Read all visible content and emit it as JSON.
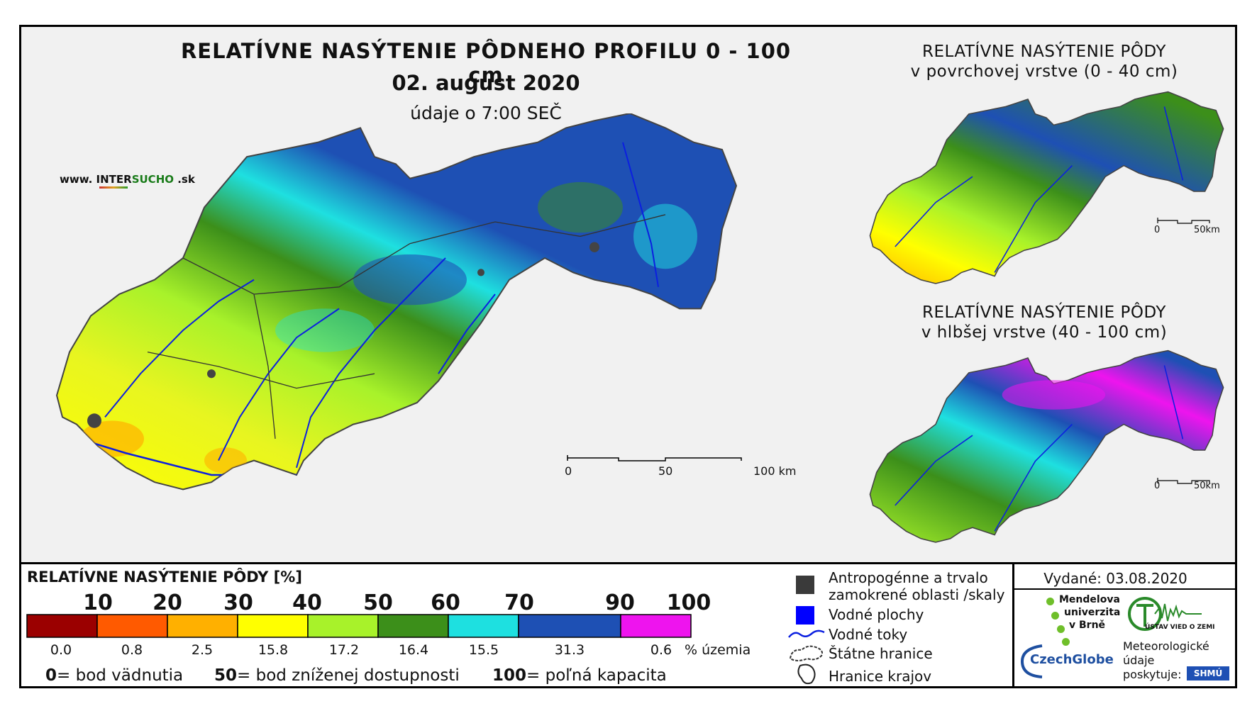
{
  "main_map": {
    "title": "RELATÍVNE NASÝTENIE PÔDNEHO PROFILU 0 - 100 cm",
    "date": "02. august 2020",
    "time": "údaje o 7:00 SEČ",
    "scalebar": {
      "labels": [
        "0",
        "50",
        "100 km"
      ]
    }
  },
  "website": {
    "prefix": "www. INTER",
    "highlight": "SUCHO",
    "suffix": " .sk"
  },
  "inset_top": {
    "title_line1": "RELATÍVNE NASÝTENIE PÔDY",
    "title_line2": "v povrchovej vrstve (0 - 40 cm)",
    "scalebar": {
      "labels": [
        "0",
        "50km"
      ]
    }
  },
  "inset_bottom": {
    "title_line1": "RELATÍVNE NASÝTENIE PÔDY",
    "title_line2": "v hlbšej vrstve (40 - 100 cm)",
    "scalebar": {
      "labels": [
        "0",
        "50km"
      ]
    }
  },
  "legend": {
    "title": "RELATÍVNE NASÝTENIE PÔDY [%]",
    "ticks": [
      "10",
      "20",
      "30",
      "40",
      "50",
      "60",
      "70",
      "90",
      "100"
    ],
    "classes": [
      {
        "color": "#9b0000",
        "territory_pct": "0.0"
      },
      {
        "color": "#ff5a00",
        "territory_pct": "0.8"
      },
      {
        "color": "#ffb000",
        "territory_pct": "2.5"
      },
      {
        "color": "#ffff00",
        "territory_pct": "15.8"
      },
      {
        "color": "#a8f22a",
        "territory_pct": "17.2"
      },
      {
        "color": "#3c8f1a",
        "territory_pct": "16.4"
      },
      {
        "color": "#1ee0e0",
        "territory_pct": "15.5"
      },
      {
        "color": "#1e50b4",
        "territory_pct": "31.3"
      },
      {
        "color": "#ee14ee",
        "territory_pct": "0.6"
      }
    ],
    "territory_unit": "% územia",
    "definitions": [
      {
        "value": "0",
        "text": "= bod vädnutia"
      },
      {
        "value": "50",
        "text": "= bod zníženej dostupnosti"
      },
      {
        "value": "100",
        "text": "= poľná kapacita"
      }
    ]
  },
  "symbols": {
    "anthropogenic_line1": "Antropogénne a trvalo",
    "anthropogenic_line2": "zamokrené oblasti /skaly",
    "water_areas": "Vodné plochy",
    "rivers": "Vodné toky",
    "state_border": "Štátne hranice",
    "region_border": "Hranice krajov"
  },
  "issued": "Vydané: 03.08.2020",
  "credits": {
    "mendel_line1": "Mendelova",
    "mendel_line2": "univerzita",
    "mendel_line3": "v Brně",
    "ustav": "ÚSTAV VIED O ZEMI",
    "czechglobe": "CzechGlobe",
    "meteo_line1": "Meteorologické",
    "meteo_line2": "údaje",
    "meteo_line3": "poskytuje:",
    "shmu": "SHMÚ"
  }
}
